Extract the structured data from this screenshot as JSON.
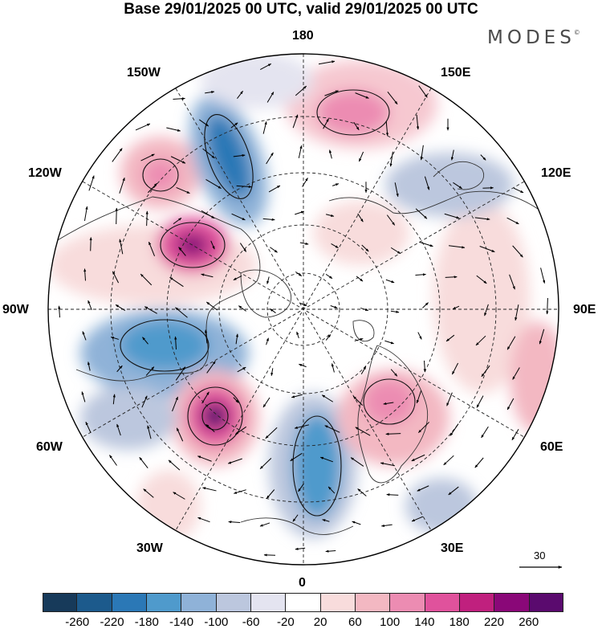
{
  "title": "Base 29/01/2025 00 UTC, valid 29/01/2025 00 UTC",
  "brand": {
    "name": "MODES",
    "mark": "©"
  },
  "longitude_labels": {
    "top": "180",
    "bottom": "0",
    "left": "90W",
    "right": "90E",
    "top_left": "150W",
    "top_right": "150E",
    "upper_left": "120W",
    "upper_right": "120E",
    "lower_left": "60W",
    "lower_right": "60E",
    "bottom_left": "30W",
    "bottom_right": "30E"
  },
  "reference_vector": {
    "label": "30"
  },
  "colorbar": {
    "colors": [
      "#173a5a",
      "#1c5a8c",
      "#2b78b6",
      "#4f9acc",
      "#8fb2d8",
      "#bcc7de",
      "#e4e4f0",
      "#ffffff",
      "#f8dcdc",
      "#f3b8c2",
      "#ec8cb2",
      "#e0529c",
      "#c0207e",
      "#8a0878",
      "#5a0a6e"
    ],
    "tick_labels": [
      "-260",
      "-220",
      "-180",
      "-140",
      "-100",
      "-60",
      "-20",
      "20",
      "60",
      "100",
      "140",
      "180",
      "220",
      "260"
    ]
  },
  "anomaly_centers": [
    {
      "kind": "positive",
      "level": "strong"
    },
    {
      "kind": "positive",
      "level": "strong"
    },
    {
      "kind": "negative",
      "level": "strong"
    },
    {
      "kind": "negative",
      "level": "moderate"
    },
    {
      "kind": "positive",
      "level": "moderate"
    },
    {
      "kind": "positive",
      "level": "moderate"
    },
    {
      "kind": "negative",
      "level": "moderate"
    }
  ]
}
